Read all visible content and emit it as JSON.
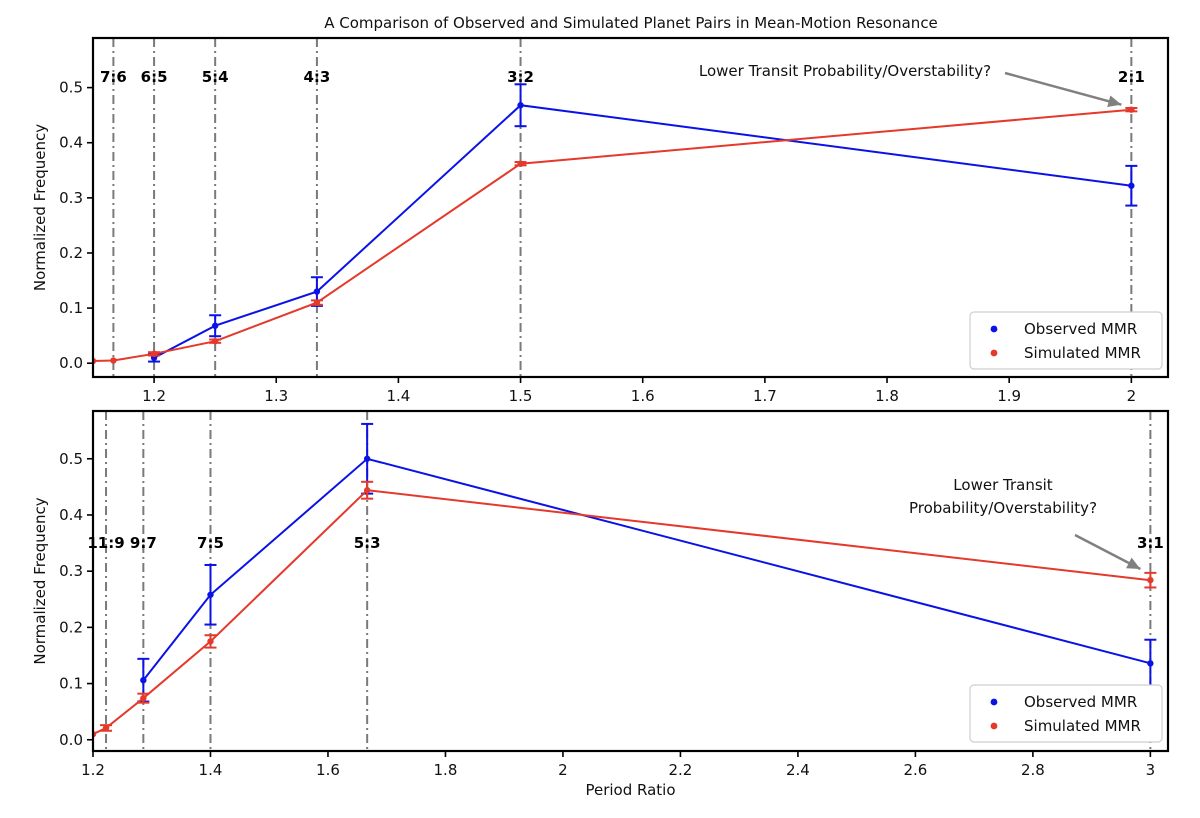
{
  "title": "A Comparison of Observed and Simulated Planet Pairs in Mean-Motion Resonance",
  "colors": {
    "observed": "#0a12e6",
    "simulated": "#e4392b",
    "guide": "#7a7a7a",
    "arrow": "#808080"
  },
  "chart_data": [
    {
      "type": "line",
      "xlabel": "",
      "ylabel": "Normalized Frequency",
      "xlim": [
        1.15,
        2.03
      ],
      "ylim": [
        -0.025,
        0.59
      ],
      "xticks": [
        1.2,
        1.3,
        1.4,
        1.5,
        1.6,
        1.7,
        1.8,
        1.9,
        2.0
      ],
      "xtick_labels": [
        "1.2",
        "1.3",
        "1.4",
        "1.5",
        "1.6",
        "1.7",
        "1.8",
        "1.9",
        "2"
      ],
      "yticks": [
        0.0,
        0.1,
        0.2,
        0.3,
        0.4,
        0.5
      ],
      "ytick_labels": [
        "0.0",
        "0.1",
        "0.2",
        "0.3",
        "0.4",
        "0.5"
      ],
      "resonances": [
        {
          "label": "7:6",
          "x": 1.1667
        },
        {
          "label": "6:5",
          "x": 1.2
        },
        {
          "label": "5:4",
          "x": 1.25
        },
        {
          "label": "4:3",
          "x": 1.3333
        },
        {
          "label": "3:2",
          "x": 1.5
        },
        {
          "label": "2:1",
          "x": 2.0
        }
      ],
      "annotation": {
        "lines": [
          "Lower Transit Probability/Overstability?"
        ],
        "points_to": {
          "x": 2.0,
          "y": 0.46
        }
      },
      "legend_position": "lower-right",
      "series": [
        {
          "name": "Observed MMR",
          "x": [
            1.2,
            1.25,
            1.3333,
            1.5,
            2.0
          ],
          "y": [
            0.01,
            0.068,
            0.13,
            0.468,
            0.322
          ],
          "err": [
            0.007,
            0.019,
            0.026,
            0.038,
            0.036
          ]
        },
        {
          "name": "Simulated MMR",
          "x": [
            1.15,
            1.1667,
            1.2,
            1.25,
            1.3333,
            1.5,
            2.0
          ],
          "y": [
            0.004,
            0.005,
            0.017,
            0.04,
            0.11,
            0.362,
            0.46
          ],
          "err": [
            0,
            0,
            0.003,
            0.003,
            0.004,
            0.003,
            0.003
          ]
        }
      ]
    },
    {
      "type": "line",
      "xlabel": "Period Ratio",
      "ylabel": "Normalized Frequency",
      "xlim": [
        1.2,
        3.03
      ],
      "ylim": [
        -0.02,
        0.585
      ],
      "xticks": [
        1.2,
        1.4,
        1.6,
        1.8,
        2.0,
        2.2,
        2.4,
        2.6,
        2.8,
        3.0
      ],
      "xtick_labels": [
        "1.2",
        "1.4",
        "1.6",
        "1.8",
        "2",
        "2.2",
        "2.4",
        "2.6",
        "2.8",
        "3"
      ],
      "yticks": [
        0.0,
        0.1,
        0.2,
        0.3,
        0.4,
        0.5
      ],
      "ytick_labels": [
        "0.0",
        "0.1",
        "0.2",
        "0.3",
        "0.4",
        "0.5"
      ],
      "resonances": [
        {
          "label": "11:9",
          "x": 1.2222
        },
        {
          "label": "9:7",
          "x": 1.2857
        },
        {
          "label": "7:5",
          "x": 1.4
        },
        {
          "label": "5:3",
          "x": 1.6667
        },
        {
          "label": "3:1",
          "x": 3.0
        }
      ],
      "annotation": {
        "lines": [
          "Lower Transit",
          "Probability/Overstability?"
        ],
        "points_to": {
          "x": 3.0,
          "y": 0.295
        }
      },
      "legend_position": "lower-right",
      "series": [
        {
          "name": "Observed MMR",
          "x": [
            1.2857,
            1.4,
            1.6667,
            3.0
          ],
          "y": [
            0.106,
            0.258,
            0.5,
            0.136
          ],
          "err": [
            0.038,
            0.053,
            0.062,
            0.042
          ]
        },
        {
          "name": "Simulated MMR",
          "x": [
            1.2,
            1.2222,
            1.2857,
            1.4,
            1.6667,
            3.0
          ],
          "y": [
            0.01,
            0.021,
            0.074,
            0.175,
            0.444,
            0.284
          ],
          "err": [
            0,
            0.005,
            0.008,
            0.011,
            0.015,
            0.013
          ]
        }
      ]
    }
  ]
}
